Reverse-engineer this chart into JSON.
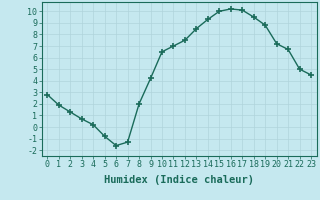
{
  "x": [
    0,
    1,
    2,
    3,
    4,
    5,
    6,
    7,
    8,
    9,
    10,
    11,
    12,
    13,
    14,
    15,
    16,
    17,
    18,
    19,
    20,
    21,
    22,
    23
  ],
  "y": [
    2.8,
    1.9,
    1.3,
    0.7,
    0.2,
    -0.8,
    -1.6,
    -1.3,
    2.0,
    4.2,
    6.5,
    7.0,
    7.5,
    8.5,
    9.3,
    10.0,
    10.2,
    10.1,
    9.5,
    8.8,
    7.2,
    6.7,
    5.0,
    4.5
  ],
  "line_color": "#1a6b5a",
  "bg_color": "#c5e8ef",
  "xlabel": "Humidex (Indice chaleur)",
  "xlim": [
    -0.5,
    23.5
  ],
  "ylim": [
    -2.5,
    10.8
  ],
  "yticks": [
    -2,
    -1,
    0,
    1,
    2,
    3,
    4,
    5,
    6,
    7,
    8,
    9,
    10
  ],
  "xticks": [
    0,
    1,
    2,
    3,
    4,
    5,
    6,
    7,
    8,
    9,
    10,
    11,
    12,
    13,
    14,
    15,
    16,
    17,
    18,
    19,
    20,
    21,
    22,
    23
  ],
  "grid_color": "#b0d4dc",
  "marker": "+",
  "markersize": 4,
  "linewidth": 1.0,
  "xlabel_fontsize": 7.5,
  "tick_fontsize": 6.0
}
